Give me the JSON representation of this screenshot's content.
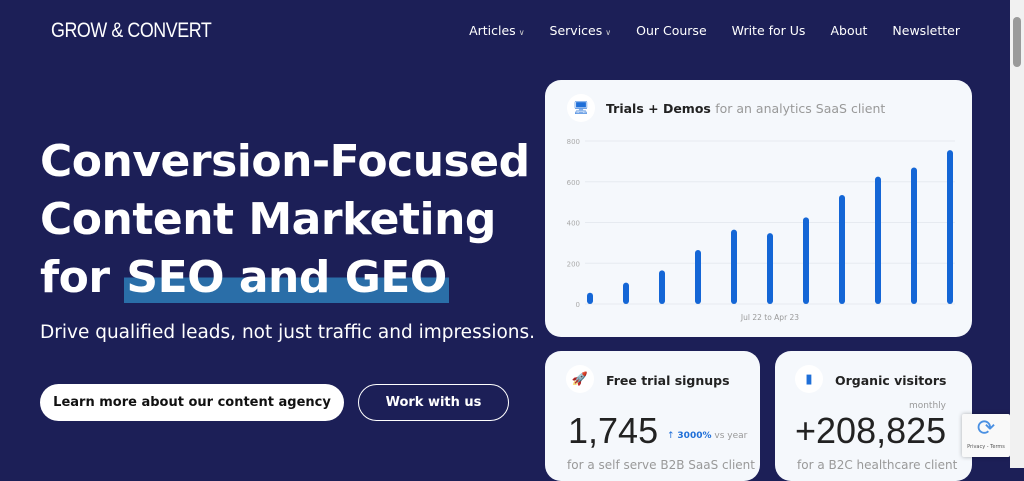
{
  "header": {
    "logo": "GROW & CONVERT",
    "nav": [
      {
        "label": "Articles",
        "dropdown": true
      },
      {
        "label": "Services",
        "dropdown": true
      },
      {
        "label": "Our Course"
      },
      {
        "label": "Write for Us"
      },
      {
        "label": "About"
      },
      {
        "label": "Newsletter"
      }
    ]
  },
  "hero": {
    "title_line1": "Conversion-Focused",
    "title_line2": "Content Marketing",
    "title_line3_pre": "for ",
    "title_highlight": "SEO and GEO",
    "subtitle": "Drive qualified leads, not just traffic and impressions.",
    "primary_button": "Learn more about our content agency",
    "secondary_button": "Work with us"
  },
  "cards": {
    "trials": {
      "title": "Trials + Demos",
      "subtitle": "for an analytics SaaS client",
      "icon": "monitor-icon"
    },
    "signups": {
      "title": "Free trial signups",
      "value": "1,745",
      "change": "3000%",
      "change_label": "vs year",
      "description": "for a self serve B2B SaaS client",
      "icon": "rocket-icon"
    },
    "visitors": {
      "title": "Organic visitors",
      "period": "monthly",
      "value": "+208,825",
      "description": "for a B2C healthcare client",
      "icon": "bar-chart-icon"
    }
  },
  "recaptcha": {
    "text": "Privacy - Terms"
  },
  "chart_data": {
    "type": "bar",
    "xlabel": "Jul 22 to Apr 23",
    "ylim": [
      0,
      800
    ],
    "yticks": [
      "0",
      "200",
      "400",
      "600",
      "800"
    ],
    "values": [
      55,
      105,
      165,
      265,
      365,
      348,
      425,
      535,
      625,
      670,
      755
    ],
    "color": "#1466d6",
    "grid": true
  }
}
